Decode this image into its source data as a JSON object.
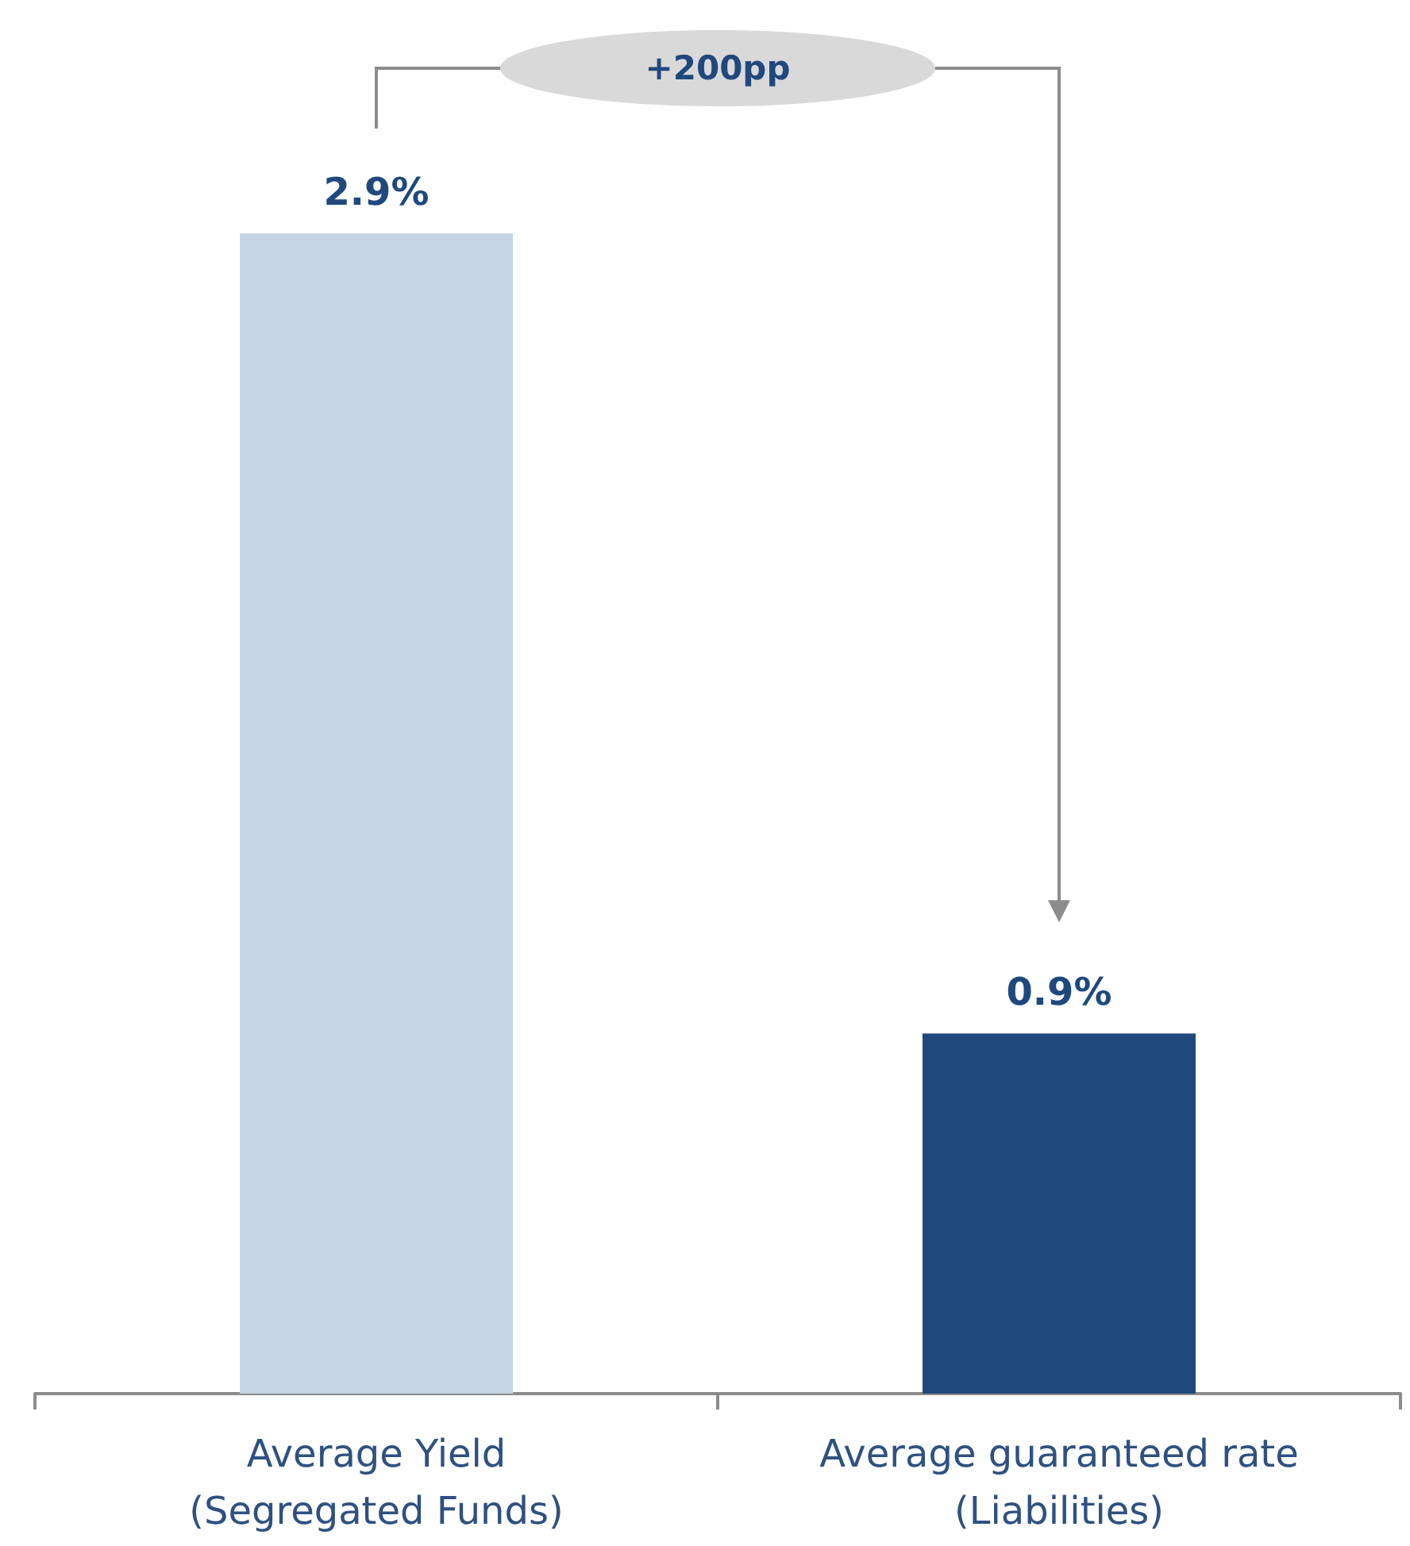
{
  "chart_data": {
    "type": "bar",
    "categories": [
      "Average Yield\n(Segregated Funds)",
      "Average guaranteed rate\n(Liabilities)"
    ],
    "values": [
      2.9,
      0.9
    ],
    "colors": [
      "#c5d5e4",
      "#1f497d"
    ],
    "value_labels": [
      "2.9%",
      "0.9%"
    ],
    "annotations": [
      "+200pp"
    ]
  }
}
